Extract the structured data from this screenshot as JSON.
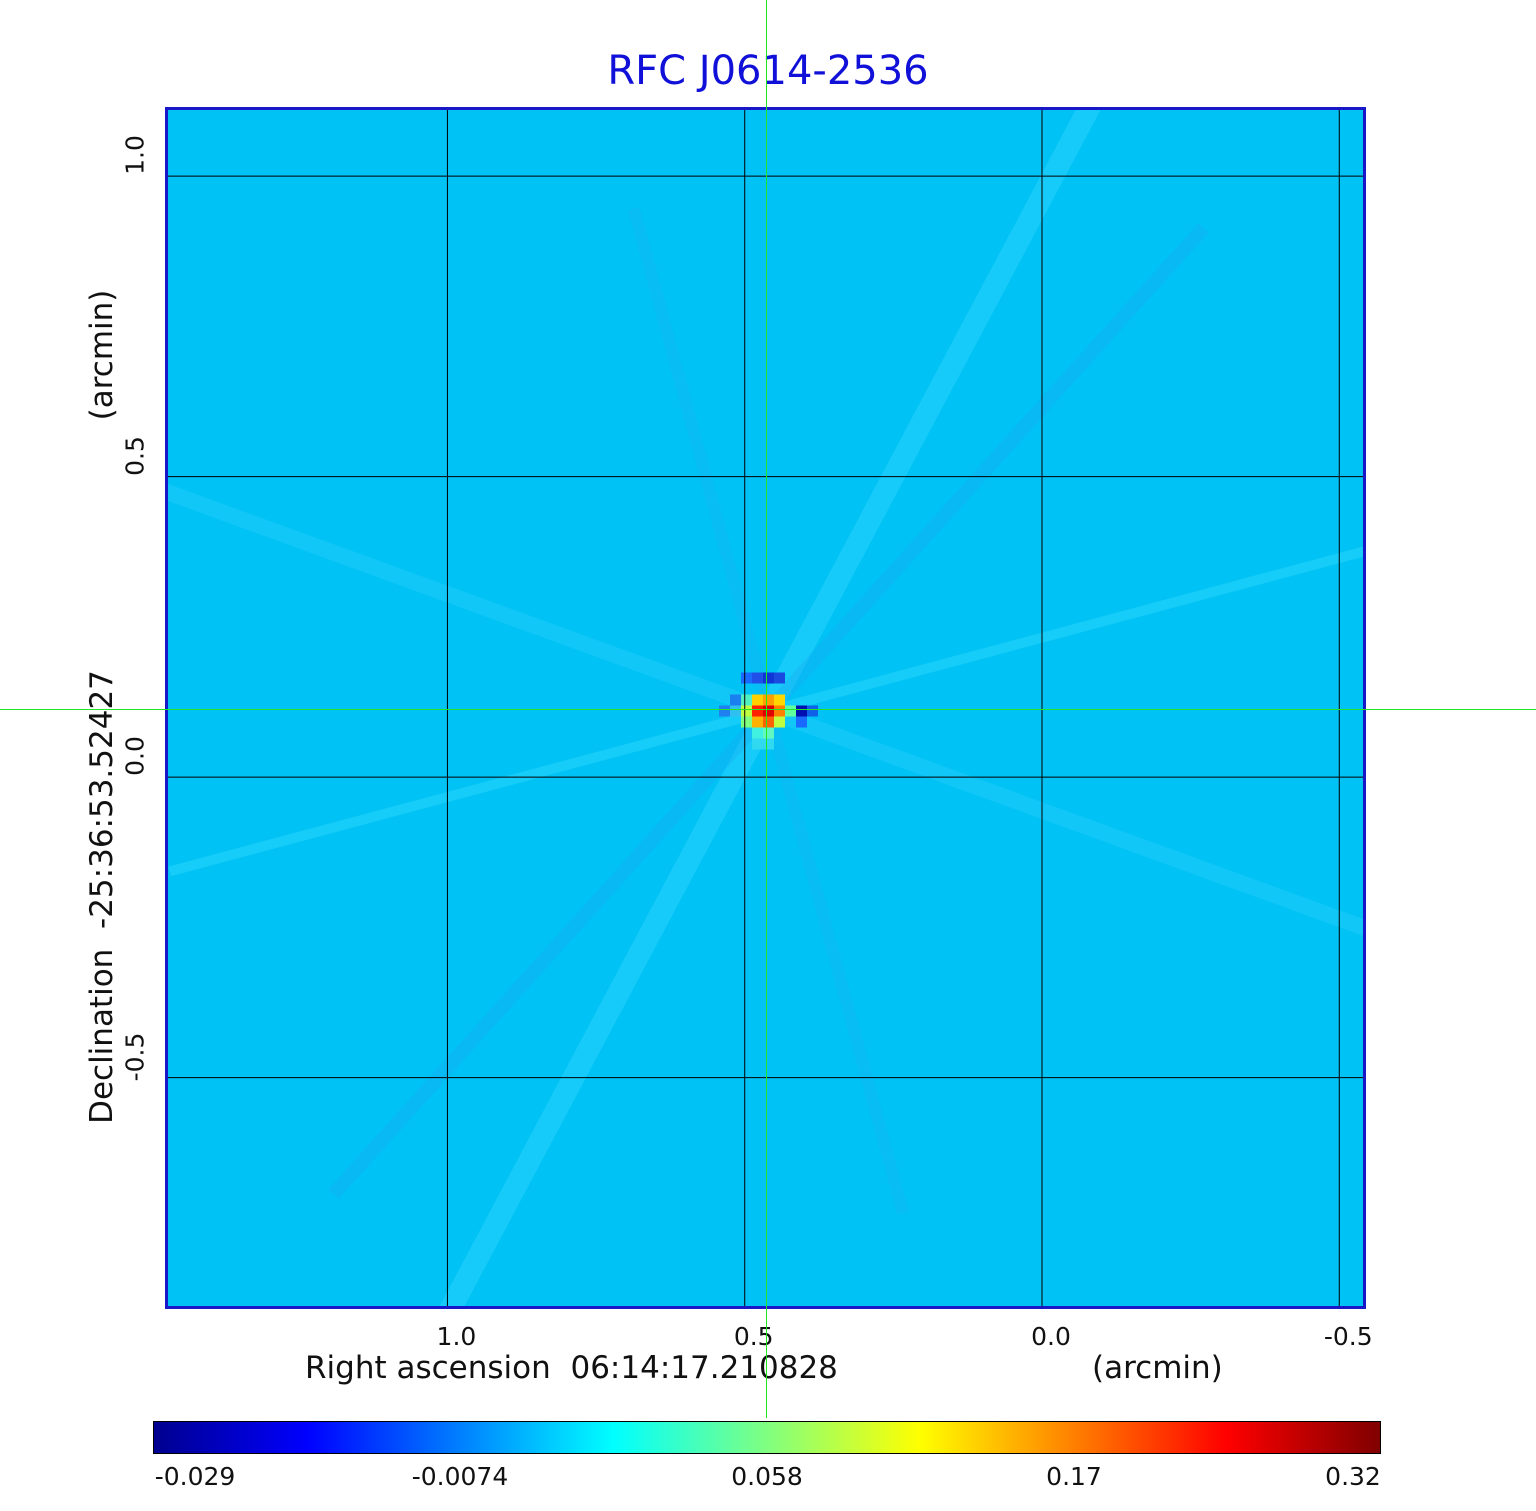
{
  "chart_data": {
    "type": "heatmap",
    "title": "RFC J0614-2536",
    "xlabel": "Right ascension  06:14:17.210828",
    "xunit": "(arcmin)",
    "ylabel": "Declination  -25:36:53.52427",
    "yunit": "(arcmin)",
    "x_ticks": [
      "1.0",
      "0.5",
      "0.0",
      "-0.5"
    ],
    "x_tick_values": [
      1.0,
      0.5,
      0.0,
      -0.5
    ],
    "y_ticks": [
      "1.0",
      "0.5",
      "0.0",
      "-0.5"
    ],
    "y_tick_values": [
      1.0,
      0.5,
      0.0,
      -0.5
    ],
    "xlim": [
      1.47,
      -0.55
    ],
    "ylim": [
      -0.89,
      1.11
    ],
    "grid": true,
    "cursor": {
      "x": 0.46,
      "y": 0.1
    },
    "source_peak": {
      "x": 0.46,
      "y": 0.11,
      "value": 0.32
    },
    "colorbar": {
      "ticks": [
        "-0.029",
        "-0.0074",
        "0.058",
        "0.17",
        "0.32"
      ],
      "stops": [
        "#00008f",
        "#0000ff",
        "#0080ff",
        "#00ffff",
        "#80ff80",
        "#ffff00",
        "#ff8000",
        "#ff0000",
        "#800000"
      ]
    },
    "colors": {
      "background": "#00c2f4",
      "frame": "#1818c8",
      "title": "#1010d8",
      "cursor": "#22e622",
      "grid": "#000000"
    }
  }
}
